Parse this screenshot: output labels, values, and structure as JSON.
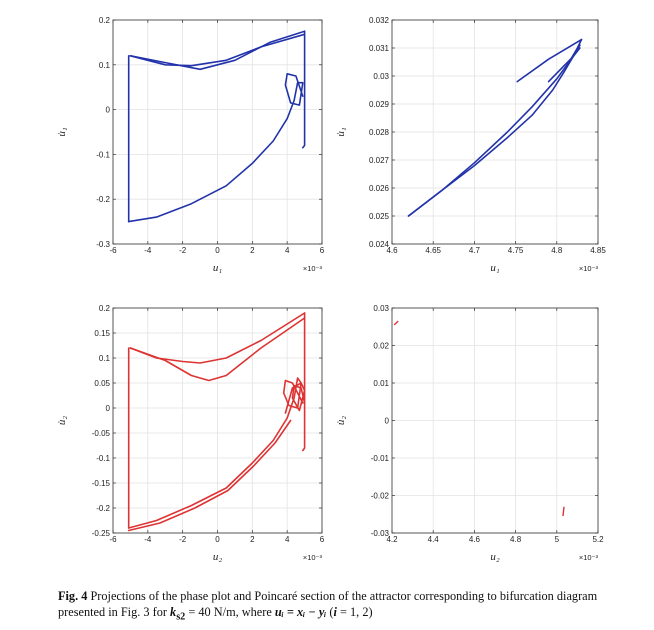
{
  "chart_data": [
    {
      "id": "p1",
      "type": "line",
      "color": "#2233aa",
      "xlim": [
        -6,
        6
      ],
      "ylim": [
        -0.3,
        0.2
      ],
      "xticks": [
        -6,
        -4,
        -2,
        0,
        2,
        4,
        6
      ],
      "yticks": [
        -0.3,
        -0.2,
        -0.1,
        0,
        0.1,
        0.2
      ],
      "xtick_labels": [
        "-6",
        "-4",
        "-2",
        "0",
        "2",
        "4",
        "6"
      ],
      "ytick_labels": [
        "-0.3",
        "-0.2",
        "-0.1",
        "0",
        "0.1",
        "0.2"
      ],
      "xlabel": "u₁",
      "ylabel": "u̇₁",
      "x_multiplier": "×10⁻³",
      "grid": true,
      "series": [
        {
          "x": [
            -5.0,
            -3.0,
            -1.0,
            1.0,
            3.0,
            5.0
          ],
          "y": [
            0.12,
            0.105,
            0.09,
            0.11,
            0.15,
            0.175
          ]
        },
        {
          "x": [
            -5.0,
            -3.0,
            -1.5,
            0.5,
            2.5,
            5.0
          ],
          "y": [
            0.12,
            0.1,
            0.098,
            0.11,
            0.14,
            0.168
          ]
        },
        {
          "x": [
            5.0,
            5.0,
            4.9
          ],
          "y": [
            0.175,
            -0.08,
            -0.085
          ]
        },
        {
          "x": [
            -5.1,
            -5.1
          ],
          "y": [
            0.12,
            -0.25
          ]
        },
        {
          "x": [
            -5.1,
            -3.5,
            -1.5,
            0.5,
            2.0,
            3.2,
            4.0
          ],
          "y": [
            -0.25,
            -0.24,
            -0.21,
            -0.17,
            -0.12,
            -0.07,
            -0.02
          ]
        },
        {
          "x": [
            4.0,
            4.4,
            4.6,
            4.9,
            4.7,
            4.2,
            3.9,
            4.0,
            4.5,
            4.9
          ],
          "y": [
            -0.02,
            0.02,
            0.06,
            0.06,
            0.01,
            0.015,
            0.055,
            0.08,
            0.075,
            0.03
          ]
        }
      ]
    },
    {
      "id": "p2",
      "type": "line",
      "color": "#2233aa",
      "xlim": [
        4.6,
        4.85
      ],
      "ylim": [
        0.024,
        0.032
      ],
      "xticks": [
        4.6,
        4.65,
        4.7,
        4.75,
        4.8,
        4.85
      ],
      "yticks": [
        0.024,
        0.025,
        0.026,
        0.027,
        0.028,
        0.029,
        0.03,
        0.031,
        0.032
      ],
      "xtick_labels": [
        "4.6",
        "4.65",
        "4.7",
        "4.75",
        "4.8",
        "4.85"
      ],
      "ytick_labels": [
        "0.024",
        "0.025",
        "0.026",
        "0.027",
        "0.028",
        "0.029",
        "0.03",
        "0.031",
        "0.032"
      ],
      "xlabel": "u₁",
      "ylabel": "u̇₁",
      "x_multiplier": "×10⁻³",
      "grid": true,
      "series": [
        {
          "x": [
            4.62,
            4.66,
            4.7,
            4.74,
            4.77,
            4.8,
            4.815,
            4.825,
            4.83
          ],
          "y": [
            0.025,
            0.0259,
            0.0269,
            0.028,
            0.0289,
            0.0299,
            0.0305,
            0.031,
            0.0313
          ]
        },
        {
          "x": [
            4.62,
            4.66,
            4.7,
            4.74,
            4.77,
            4.795,
            4.81,
            4.82,
            4.828
          ],
          "y": [
            0.025,
            0.0259,
            0.0268,
            0.0278,
            0.0286,
            0.0295,
            0.0302,
            0.0307,
            0.0311
          ]
        },
        {
          "x": [
            4.752,
            4.79,
            4.83
          ],
          "y": [
            0.0298,
            0.0306,
            0.0313
          ]
        },
        {
          "x": [
            4.79,
            4.8,
            4.81,
            4.82,
            4.828
          ],
          "y": [
            0.0298,
            0.0301,
            0.0304,
            0.0307,
            0.031
          ]
        }
      ]
    },
    {
      "id": "p3",
      "type": "line",
      "color": "#dd3333",
      "xlim": [
        -6,
        6
      ],
      "ylim": [
        -0.25,
        0.2
      ],
      "xticks": [
        -6,
        -4,
        -2,
        0,
        2,
        4,
        6
      ],
      "yticks": [
        -0.25,
        -0.2,
        -0.15,
        -0.1,
        -0.05,
        0,
        0.05,
        0.1,
        0.15,
        0.2
      ],
      "xtick_labels": [
        "-6",
        "-4",
        "-2",
        "0",
        "2",
        "4",
        "6"
      ],
      "ytick_labels": [
        "-0.25",
        "-0.2",
        "-0.15",
        "-0.1",
        "-0.05",
        "0",
        "0.05",
        "0.1",
        "0.15",
        "0.2"
      ],
      "xlabel": "u₂",
      "ylabel": "u̇₂",
      "x_multiplier": "×10⁻³",
      "grid": true,
      "series": [
        {
          "x": [
            -5.0,
            -3.5,
            -2.0,
            -1.0,
            0.5,
            2.5,
            5.0
          ],
          "y": [
            0.12,
            0.1,
            0.093,
            0.09,
            0.1,
            0.135,
            0.19
          ]
        },
        {
          "x": [
            -5.0,
            -3.0,
            -1.5,
            -0.5,
            0.5,
            2.5,
            5.0
          ],
          "y": [
            0.12,
            0.095,
            0.065,
            0.055,
            0.065,
            0.12,
            0.18
          ]
        },
        {
          "x": [
            5.0,
            5.0,
            4.9
          ],
          "y": [
            0.19,
            -0.08,
            -0.085
          ]
        },
        {
          "x": [
            -5.1,
            -5.1
          ],
          "y": [
            0.12,
            -0.24
          ]
        },
        {
          "x": [
            -5.1,
            -3.5,
            -1.5,
            0.5,
            2.0,
            3.2,
            4.0
          ],
          "y": [
            -0.24,
            -0.225,
            -0.195,
            -0.16,
            -0.11,
            -0.065,
            -0.02
          ]
        },
        {
          "x": [
            -5.1,
            -3.3,
            -1.3,
            0.6,
            2.1,
            3.3,
            4.2
          ],
          "y": [
            -0.245,
            -0.23,
            -0.2,
            -0.165,
            -0.115,
            -0.07,
            -0.025
          ]
        },
        {
          "x": [
            4.0,
            4.4,
            4.6,
            4.8,
            4.6,
            4.1,
            3.8,
            3.9,
            4.3,
            4.9
          ],
          "y": [
            -0.02,
            0.02,
            0.06,
            0.05,
            0.0,
            0.005,
            0.03,
            0.055,
            0.05,
            0.01
          ]
        },
        {
          "x": [
            3.9,
            4.3,
            4.8,
            5.0,
            4.7,
            4.3,
            4.4,
            4.8,
            5.0
          ],
          "y": [
            -0.01,
            0.04,
            0.05,
            0.035,
            -0.005,
            0.02,
            0.045,
            0.04,
            0.01
          ]
        }
      ]
    },
    {
      "id": "p4",
      "type": "scatter",
      "color": "#dd3333",
      "xlim": [
        4.2,
        5.2
      ],
      "ylim": [
        -0.03,
        0.03
      ],
      "xticks": [
        4.2,
        4.4,
        4.6,
        4.8,
        5.0,
        5.2
      ],
      "yticks": [
        -0.03,
        -0.02,
        -0.01,
        0,
        0.01,
        0.02,
        0.03
      ],
      "xtick_labels": [
        "4.2",
        "4.4",
        "4.6",
        "4.8",
        "5",
        "5.2"
      ],
      "ytick_labels": [
        "-0.03",
        "-0.02",
        "-0.01",
        "0",
        "0.01",
        "0.02",
        "0.03"
      ],
      "xlabel": "u₂",
      "ylabel": "u̇₂",
      "x_multiplier": "×10⁻³",
      "grid": true,
      "series": [
        {
          "x": [
            4.21,
            4.23
          ],
          "y": [
            0.0255,
            0.0265
          ]
        },
        {
          "x": [
            5.03,
            5.035
          ],
          "y": [
            -0.0255,
            -0.023
          ]
        }
      ]
    }
  ],
  "caption": {
    "fig_label": "Fig. 4",
    "text_1": " Projections of the phase plot and Poincaré section of the attractor corresponding to bifurcation diagram presented in Fig. 3 for ",
    "param": "k",
    "param_sub": "s2",
    "text_2": " = 40 N/m, where ",
    "formula": "uᵢ = xᵢ − yᵢ",
    "text_3": " (",
    "index": "i",
    "text_4": " = 1, 2)"
  }
}
